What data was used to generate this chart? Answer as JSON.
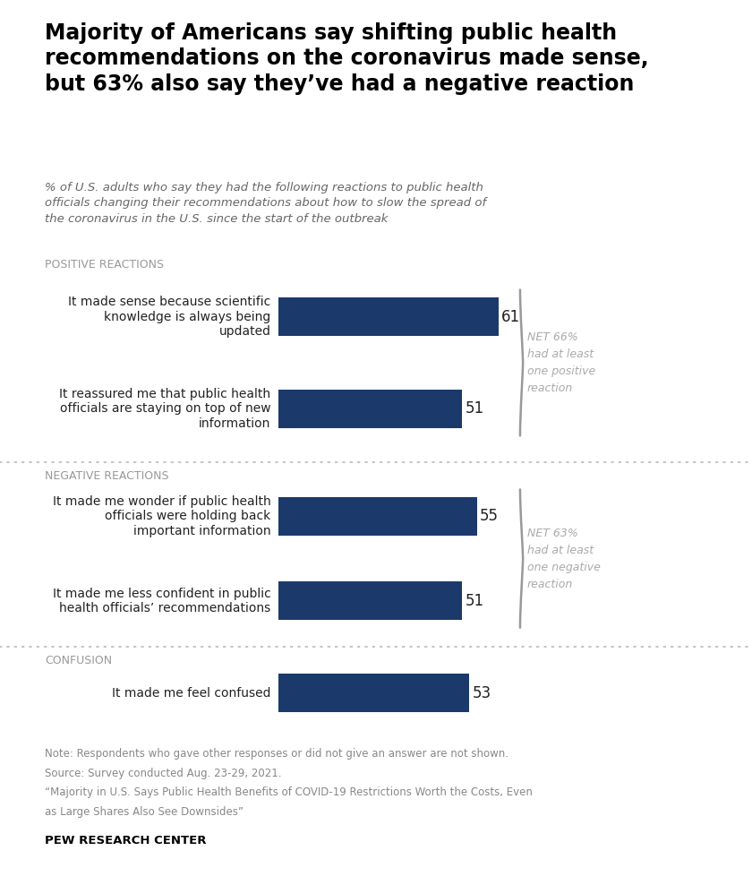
{
  "title": "Majority of Americans say shifting public health\nrecommendations on the coronavirus made sense,\nbut 63% also say they’ve had a negative reaction",
  "subtitle": "% of U.S. adults who say they had the following reactions to public health\nofficials changing their recommendations about how to slow the spread of\nthe coronavirus in the U.S. since the start of the outbreak",
  "categories": [
    "It made sense because scientific\nknowledge is always being\nupdated",
    "It reassured me that public health\nofficials are staying on top of new\ninformation",
    "It made me wonder if public health\nofficials were holding back\nimportant information",
    "It made me less confident in public\nhealth officials’ recommendations",
    "It made me feel confused"
  ],
  "values": [
    61,
    51,
    55,
    51,
    53
  ],
  "bar_color": "#1b3a6b",
  "note_lines": [
    "Note: Respondents who gave other responses or did not give an answer are not shown.",
    "Source: Survey conducted Aug. 23-29, 2021.",
    "“Majority in U.S. Says Public Health Benefits of COVID-19 Restrictions Worth the Costs, Even",
    "as Large Shares Also See Downsides”"
  ],
  "source_bold": "PEW RESEARCH CENTER",
  "background_color": "#ffffff",
  "text_color": "#222222",
  "section_label_color": "#999999",
  "bar_label_color": "#222222",
  "net_text_color": "#aaaaaa",
  "dotted_line_color": "#bbbbbb",
  "title_color": "#000000",
  "subtitle_color": "#666666",
  "bracket_color": "#999999",
  "note_color": "#888888"
}
